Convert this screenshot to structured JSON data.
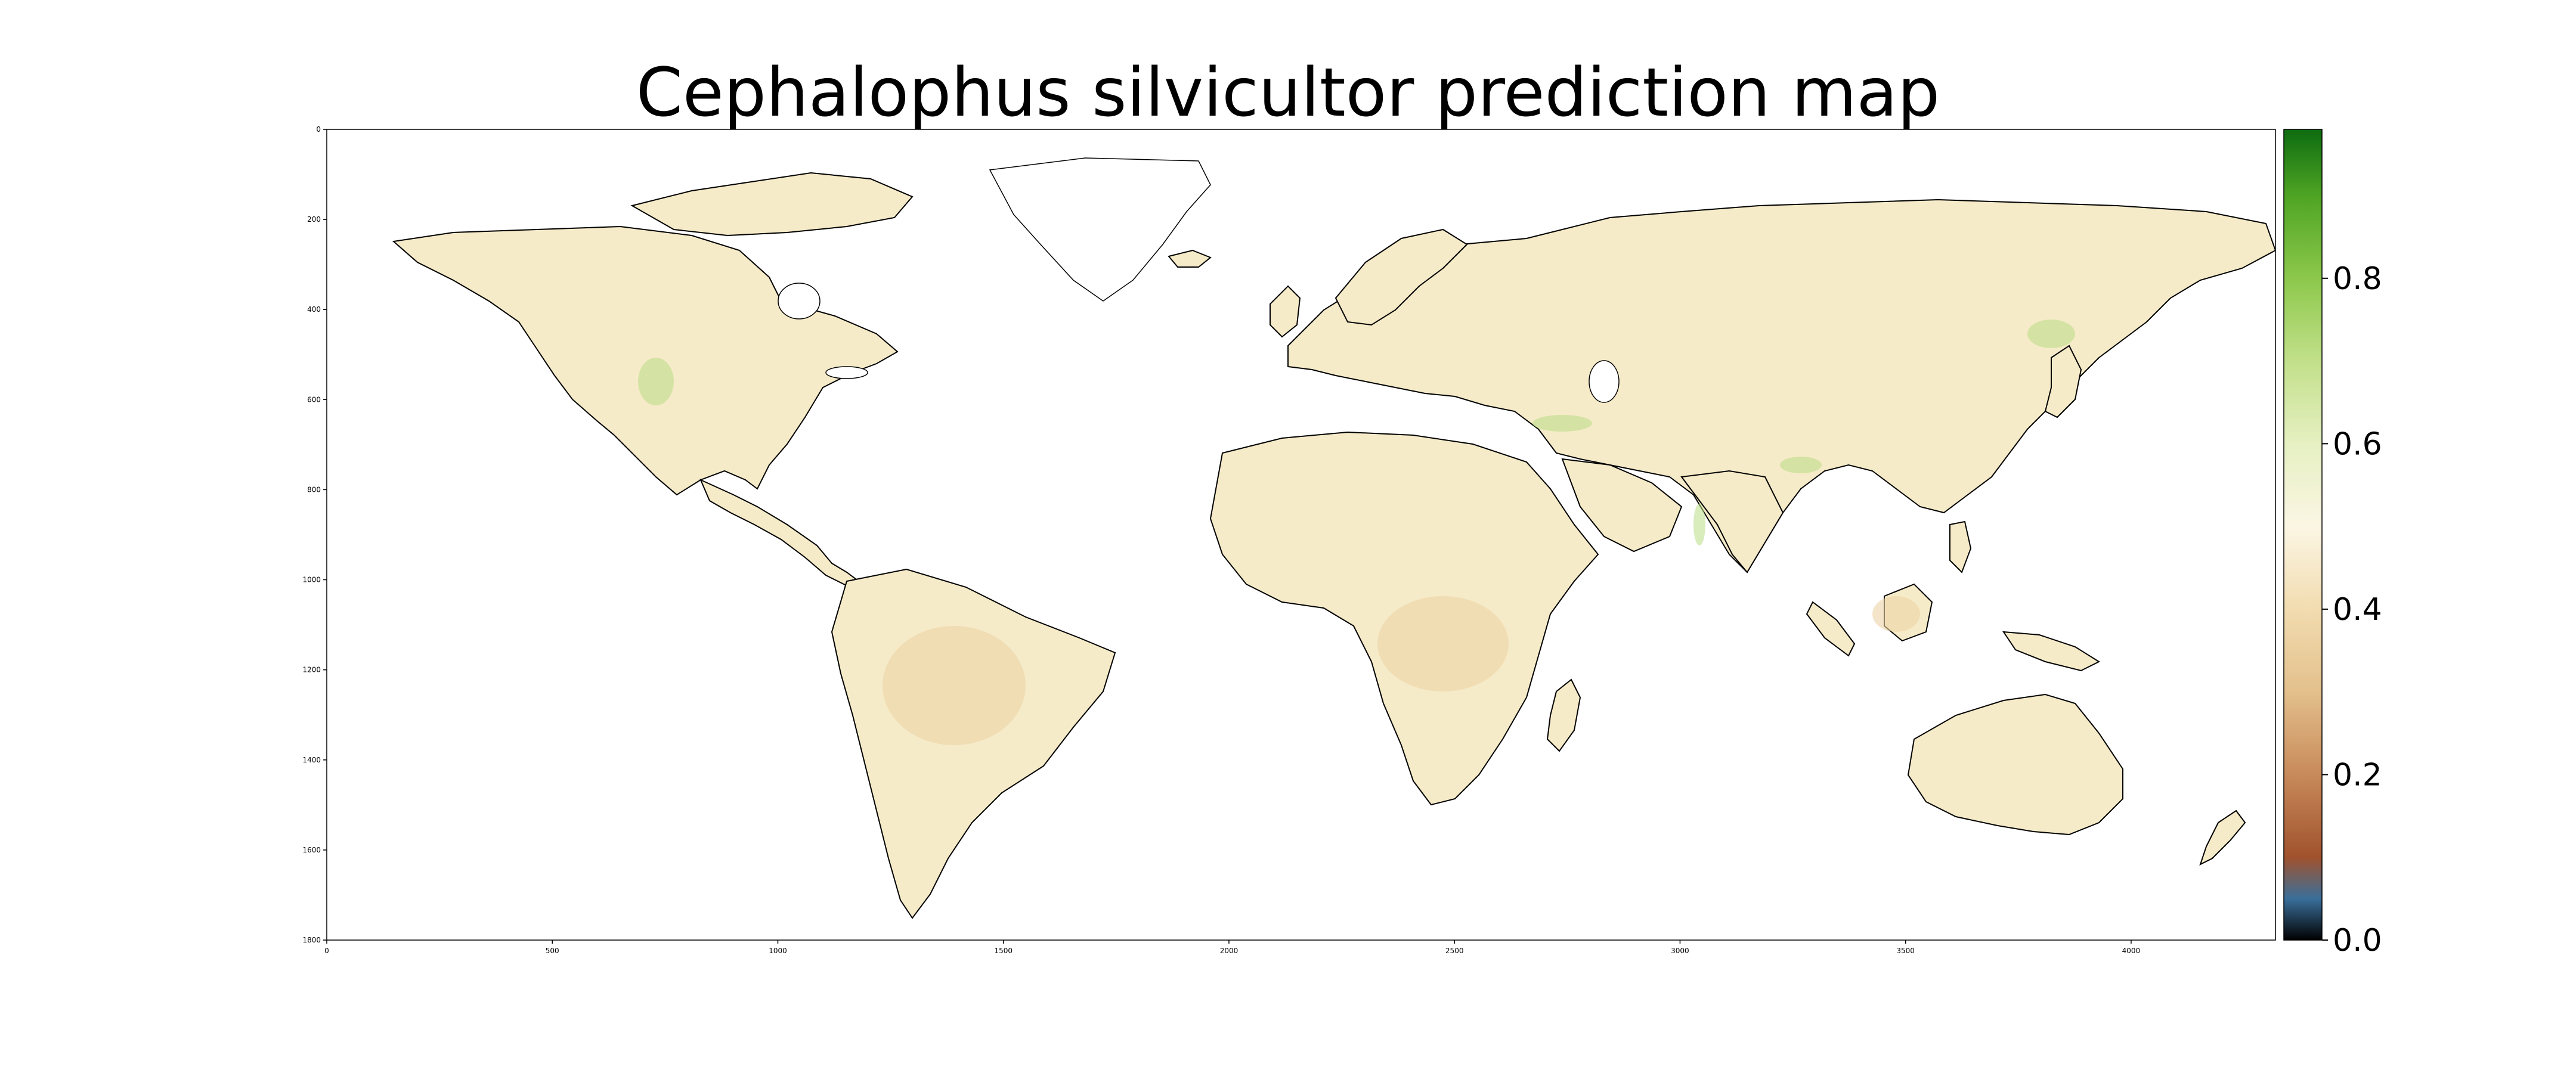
{
  "title": "Cephalophus silvicultor prediction map",
  "map": {
    "x_ticks": [
      "0",
      "500",
      "1000",
      "1500",
      "2000",
      "2500",
      "3000",
      "3500",
      "4000"
    ],
    "y_ticks": [
      "0",
      "200",
      "400",
      "600",
      "800",
      "1000",
      "1200",
      "1400",
      "1600",
      "1800"
    ],
    "x_range": [
      0,
      4320
    ],
    "y_range": [
      0,
      1800
    ],
    "ocean_color": "#ffffff",
    "land_base_color": "#f6ebc8",
    "coastline_color": "#000000"
  },
  "colorbar": {
    "ticks": [
      "0.0",
      "0.2",
      "0.4",
      "0.6",
      "0.8"
    ],
    "range": [
      0.0,
      0.98
    ],
    "stops": [
      {
        "v": 0.0,
        "c": "#000000"
      },
      {
        "v": 0.05,
        "c": "#3a6f9a"
      },
      {
        "v": 0.1,
        "c": "#a0522d"
      },
      {
        "v": 0.2,
        "c": "#c88a5a"
      },
      {
        "v": 0.3,
        "c": "#e3c08c"
      },
      {
        "v": 0.4,
        "c": "#f2dcb0"
      },
      {
        "v": 0.5,
        "c": "#fbf6e4"
      },
      {
        "v": 0.6,
        "c": "#e6f0c2"
      },
      {
        "v": 0.7,
        "c": "#c2e08a"
      },
      {
        "v": 0.8,
        "c": "#8cc84b"
      },
      {
        "v": 0.9,
        "c": "#4ea424"
      },
      {
        "v": 0.98,
        "c": "#0e6c10"
      }
    ]
  }
}
